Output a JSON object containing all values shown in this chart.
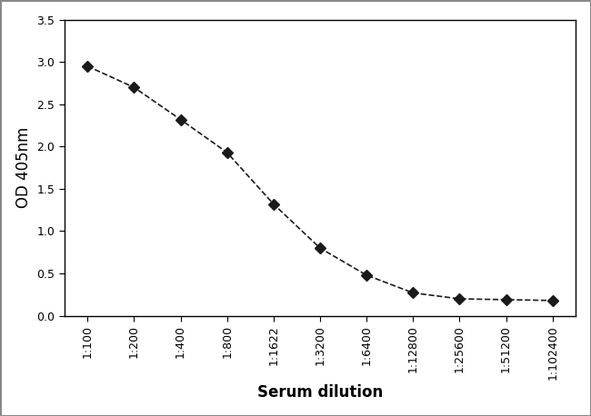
{
  "x_labels": [
    "1:100",
    "1:200",
    "1:400",
    "1:800",
    "1:1622",
    "1:3200",
    "1:6400",
    "1:12800",
    "1:25600",
    "1:51200",
    "1:102400"
  ],
  "y_values": [
    2.95,
    2.7,
    2.32,
    1.93,
    1.32,
    0.8,
    0.48,
    0.27,
    0.2,
    0.19,
    0.18
  ],
  "xlabel": "Serum dilution",
  "ylabel": "OD 405nm",
  "ylim": [
    0.0,
    3.5
  ],
  "yticks": [
    0.0,
    0.5,
    1.0,
    1.5,
    2.0,
    2.5,
    3.0,
    3.5
  ],
  "line_color": "#1a1a1a",
  "marker": "D",
  "marker_size": 6,
  "line_width": 1.2,
  "line_style": "--",
  "background_color": "#ffffff",
  "xlabel_fontsize": 12,
  "ylabel_fontsize": 12,
  "tick_fontsize": 9
}
